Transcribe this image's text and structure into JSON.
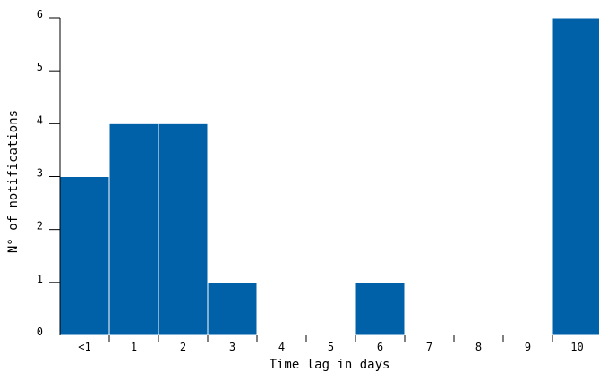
{
  "chart_data": {
    "type": "bar",
    "categories": [
      "<1",
      "1",
      "2",
      "3",
      "4",
      "5",
      "6",
      "7",
      "8",
      "9",
      "10"
    ],
    "values": [
      3,
      4,
      4,
      1,
      0,
      0,
      1,
      0,
      0,
      0,
      6
    ],
    "xlabel": "Time lag in days",
    "ylabel": "N° of notifications",
    "ylim": [
      0,
      6
    ],
    "yticks": [
      0,
      1,
      2,
      3,
      4,
      5,
      6
    ],
    "grid": false,
    "legend": "none",
    "colors": {
      "bar": "#0060a8",
      "bar_edge": "#ffffff",
      "axis": "#000000"
    }
  }
}
